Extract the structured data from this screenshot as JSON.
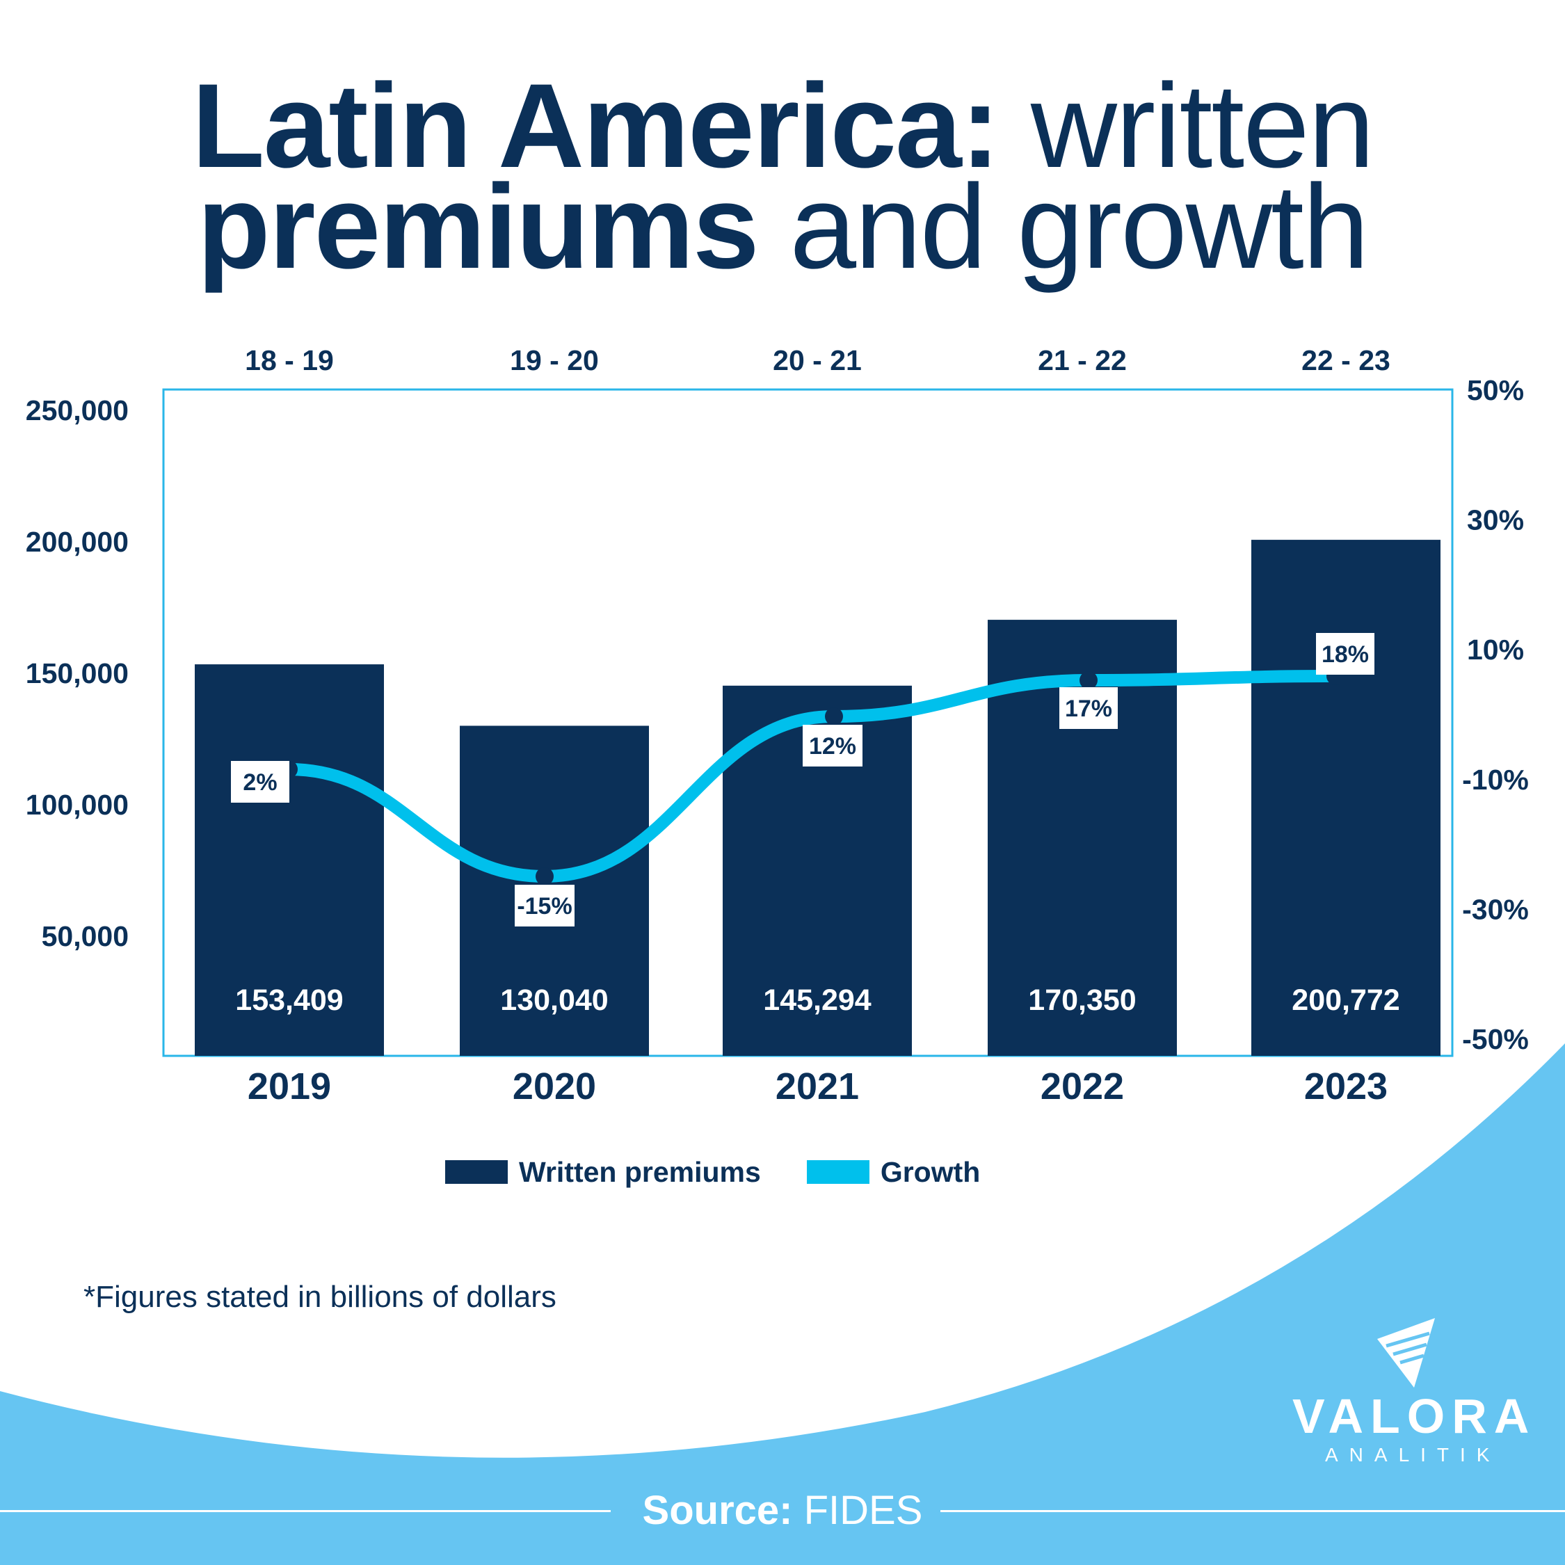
{
  "title": {
    "line1_bold": "Latin America:",
    "line1_light": "written",
    "line2_bold": "premiums",
    "line2_light": "and growth"
  },
  "chart_data": {
    "type": "bar",
    "categories": [
      "2019",
      "2020",
      "2021",
      "2022",
      "2023"
    ],
    "top_categories": [
      "18 - 19",
      "19 - 20",
      "20 - 21",
      "21 - 22",
      "22 - 23"
    ],
    "series": [
      {
        "name": "Written premiums",
        "type": "bar",
        "axis": "left",
        "values": [
          153409,
          130040,
          145294,
          170350,
          200772
        ],
        "labels": [
          "153,409",
          "130,040",
          "145,294",
          "170,350",
          "200,772"
        ]
      },
      {
        "name": "Growth",
        "type": "line",
        "axis": "right",
        "values": [
          2,
          -15,
          12,
          17,
          18
        ],
        "labels": [
          "2%",
          "-15%",
          "12%",
          "17%",
          "18%"
        ]
      }
    ],
    "left_axis": {
      "ticks": [
        50000,
        100000,
        150000,
        200000,
        250000
      ],
      "tick_labels": [
        "50,000",
        "100,000",
        "150,000",
        "200,000",
        "250,000"
      ],
      "ylim": [
        0,
        250000
      ]
    },
    "right_axis": {
      "ticks": [
        -50,
        -30,
        -10,
        10,
        30,
        50
      ],
      "tick_labels": [
        "-50%",
        "-30%",
        "-10%",
        "10%",
        "30%",
        "50%"
      ],
      "ylim": [
        -50,
        50
      ]
    },
    "grid": false,
    "legend_position": "bottom-center",
    "colors": {
      "bar": "#0b3058",
      "line": "#00c0ec",
      "frame": "#29b6e8"
    }
  },
  "legend": {
    "premiums_label": "Written premiums",
    "growth_label": "Growth"
  },
  "footnote": "*Figures stated in billions of dollars",
  "source": {
    "label": "Source:",
    "value": "FIDES"
  },
  "logo": {
    "word": "VALORA",
    "sub": "ANALITIK"
  },
  "colors": {
    "navy": "#0b3058",
    "wave": "#66c5f2",
    "accent": "#00c0ec"
  }
}
